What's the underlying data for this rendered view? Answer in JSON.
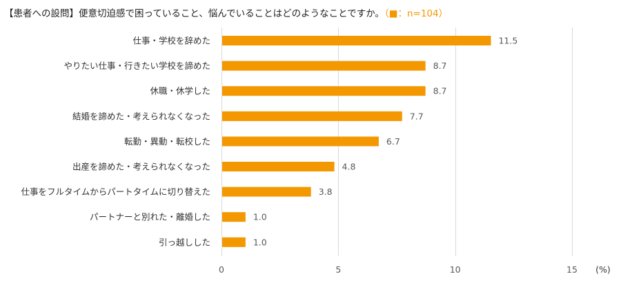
{
  "chart_data": {
    "type": "bar",
    "orientation": "horizontal",
    "title": "【患者への設問】便意切迫感で困っていること、悩んでいることはどのようなことですか。",
    "legend": {
      "marker": "■",
      "text": "：n=104",
      "open": "（",
      "close": "）"
    },
    "categories": [
      "仕事・学校を辞めた",
      "やりたい仕事・行きたい学校を諦めた",
      "休職・休学した",
      "結婚を諦めた・考えられなくなった",
      "転勤・異動・転校した",
      "出産を諦めた・考えられなくなった",
      "仕事をフルタイムからパートタイムに切り替えた",
      "パートナーと別れた・離婚した",
      "引っ越しした"
    ],
    "values": [
      11.5,
      8.7,
      8.7,
      7.7,
      6.7,
      4.8,
      3.8,
      1.0,
      1.0
    ],
    "value_labels": [
      "11.5",
      "8.7",
      "8.7",
      "7.7",
      "6.7",
      "4.8",
      "3.8",
      "1.0",
      "1.0"
    ],
    "xlim": [
      0,
      15
    ],
    "xticks": [
      0,
      5,
      10,
      15
    ],
    "unit": "(%)",
    "grid": true,
    "colors": {
      "bar": "#f39800",
      "grid": "#d9d9d9"
    }
  }
}
